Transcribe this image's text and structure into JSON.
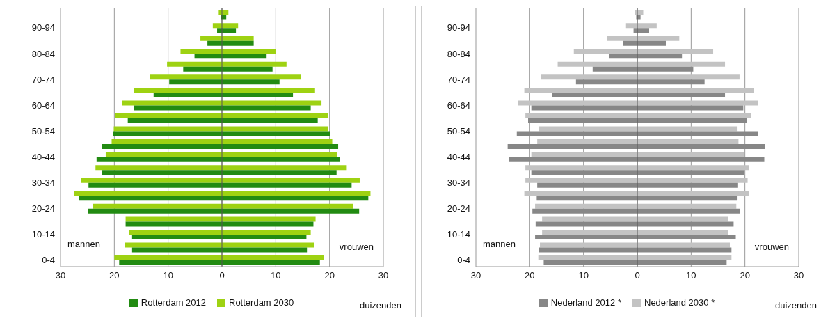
{
  "chart_data": [
    {
      "type": "bar",
      "orientation": "horizontal",
      "categories": [
        null,
        "90-94",
        null,
        "80-84",
        null,
        "70-74",
        null,
        "60-64",
        null,
        "50-54",
        null,
        "40-44",
        null,
        "30-34",
        null,
        "20-24",
        null,
        "10-14",
        null,
        "0-4"
      ],
      "series": [
        {
          "name": "Rotterdam 2012",
          "color": "#228b12",
          "base": [
            -0.2,
            -0.9,
            -2.7,
            -5.1,
            -7.2,
            -9.8,
            -12.7,
            -16.4,
            -17.5,
            -20.2,
            -22.3,
            -23.3,
            -22.3,
            -24.8,
            -26.6,
            -24.9,
            -17.9,
            -16.7,
            -16.7,
            -19.1
          ],
          "values": [
            1.0,
            3.5,
            8.6,
            13.4,
            16.6,
            20.5,
            25.9,
            32.9,
            35.3,
            40.3,
            43.9,
            45.2,
            43.6,
            48.9,
            53.8,
            50.4,
            34.9,
            32.4,
            32.5,
            37.3
          ]
        },
        {
          "name": "Rotterdam 2030",
          "color": "#9ed212",
          "base": [
            -0.6,
            -1.7,
            -4.0,
            -7.7,
            -10.2,
            -13.4,
            -16.4,
            -18.6,
            -19.9,
            -20.1,
            -20.5,
            -21.6,
            -23.5,
            -26.2,
            -27.5,
            -24.0,
            -17.9,
            -17.3,
            -18.0,
            -20.0
          ],
          "values": [
            1.8,
            4.7,
            9.9,
            17.7,
            22.2,
            28.1,
            33.7,
            37.1,
            39.6,
            39.8,
            41.0,
            43.0,
            46.7,
            51.8,
            55.1,
            48.4,
            35.3,
            33.8,
            35.2,
            39.0
          ]
        }
      ],
      "xlim": [
        -30,
        30
      ],
      "xticks": [
        {
          "value": -30,
          "label": "30"
        },
        {
          "value": -20,
          "label": "20"
        },
        {
          "value": -10,
          "label": "10"
        },
        0,
        10,
        20,
        30
      ],
      "xlabel": "duizenden",
      "annotations": [
        "mannen",
        "vrouwen"
      ],
      "grid": "x",
      "legend": "bottom",
      "ref_lines": [
        {
          "axis": "x",
          "value": 0,
          "color": "#555555"
        }
      ]
    },
    {
      "type": "bar",
      "orientation": "horizontal",
      "categories": [
        null,
        "90-94",
        null,
        "80-84",
        null,
        "70-74",
        null,
        "60-64",
        null,
        "50-54",
        null,
        "40-44",
        null,
        "30-34",
        null,
        "20-24",
        null,
        "10-14",
        null,
        "0-4"
      ],
      "series": [
        {
          "name": "Nederland 2012 *",
          "color": "#878787",
          "base": [
            -0.2,
            -0.7,
            -2.6,
            -5.3,
            -8.3,
            -11.4,
            -15.9,
            -19.7,
            -20.3,
            -22.4,
            -24.1,
            -23.8,
            -19.7,
            -18.6,
            -18.7,
            -19.5,
            -18.9,
            -19.0,
            -18.3,
            -17.4
          ],
          "values": [
            0.8,
            2.9,
            7.9,
            13.6,
            18.7,
            23.9,
            32.2,
            39.4,
            40.7,
            44.8,
            47.8,
            47.4,
            39.5,
            37.2,
            37.2,
            38.6,
            36.8,
            37.3,
            35.8,
            34.0
          ]
        },
        {
          "name": "Nederland 2030 *",
          "color": "#c3c3c3",
          "base": [
            -0.4,
            -2.1,
            -5.6,
            -11.8,
            -14.8,
            -17.9,
            -21.0,
            -22.2,
            -20.8,
            -18.3,
            -18.6,
            -19.7,
            -20.8,
            -20.8,
            -21.0,
            -19.0,
            -17.7,
            -17.7,
            -18.1,
            -18.4
          ],
          "values": [
            1.5,
            5.7,
            13.4,
            25.9,
            31.1,
            36.9,
            42.7,
            44.7,
            42.0,
            36.8,
            37.4,
            39.5,
            41.5,
            41.3,
            41.7,
            37.4,
            34.6,
            34.6,
            35.3,
            35.9
          ]
        }
      ],
      "xlim": [
        -30,
        30
      ],
      "xticks": [
        {
          "value": -30,
          "label": "30"
        },
        {
          "value": -20,
          "label": "20"
        },
        {
          "value": -10,
          "label": "10"
        },
        0,
        10,
        20,
        30
      ],
      "xlabel": "duizenden",
      "annotations": [
        "mannen",
        "vrouwen"
      ],
      "grid": "x",
      "legend": "bottom",
      "ref_lines": [
        {
          "axis": "x",
          "value": 0,
          "color": "#555555"
        }
      ]
    }
  ]
}
